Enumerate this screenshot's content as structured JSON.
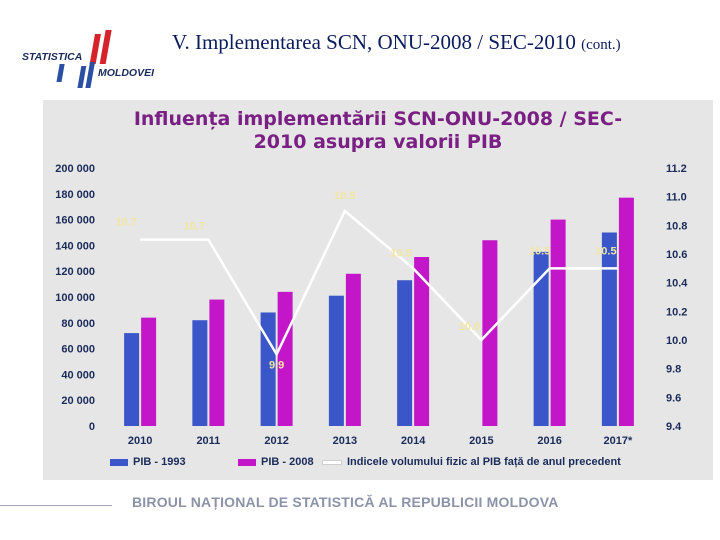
{
  "slide": {
    "title_main": "V. Implementarea SCN, ONU-2008 / SEC-2010",
    "title_suffix": "(cont.)",
    "footer": "BIROUL NAȚIONAL DE STATISTICĂ AL REPUBLICII MOLDOVA",
    "logo_line1": "STATISTICA",
    "logo_line2": "MOLDOVEI"
  },
  "colors": {
    "pib1993": "#3a56c9",
    "pib2008": "#c316c9",
    "line": "#ffffff",
    "title": "#7a1f83",
    "axis_text": "#1a2b5a",
    "label_text": "#f3e6a0"
  },
  "chart_data": {
    "type": "bar",
    "title_line1": "Influența implementării SCN-ONU-2008 / SEC-",
    "title_line2": "2010 asupra valorii PIB",
    "categories": [
      "2010",
      "2011",
      "2012",
      "2013",
      "2014",
      "2015",
      "2016",
      "2017*"
    ],
    "series": [
      {
        "name": "PIB - 1993",
        "values": [
          72000,
          82000,
          88000,
          101000,
          113000,
          0,
          135000,
          150000
        ]
      },
      {
        "name": "PIB - 2008",
        "values": [
          84000,
          98000,
          104000,
          118000,
          131000,
          144000,
          160000,
          177000
        ]
      }
    ],
    "line_series": {
      "name": "Indicele volumului fizic al PIB față de anul precedent",
      "values": [
        10.7,
        10.7,
        9.9,
        10.9,
        10.5,
        10.0,
        10.5,
        10.5
      ],
      "labels": [
        "10.7",
        "10.7",
        "9.9",
        "10.9",
        "10.5",
        "10.0",
        "10.5",
        "10.5"
      ]
    },
    "y_left": {
      "ticks": [
        "0",
        "20 000",
        "40 000",
        "60 000",
        "80 000",
        "100 000",
        "120 000",
        "140 000",
        "160 000",
        "180 000",
        "200 000"
      ],
      "min": 0,
      "max": 200000
    },
    "y_right": {
      "ticks": [
        "9.4",
        "9.6",
        "9.8",
        "10.0",
        "10.2",
        "10.4",
        "10.6",
        "10.8",
        "11.0",
        "11.2"
      ],
      "min": 9.4,
      "max": 11.2
    },
    "legend_position": "bottom"
  }
}
